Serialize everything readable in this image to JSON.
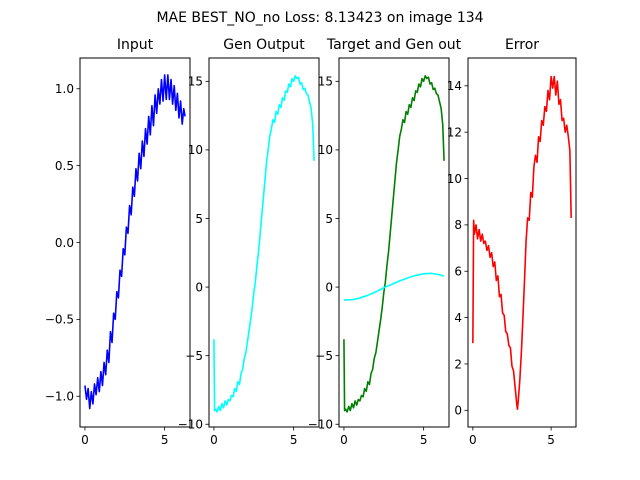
{
  "figure": {
    "suptitle": "MAE BEST_NO_no Loss: 8.13423 on image 134"
  },
  "chart_data": [
    {
      "type": "line",
      "title": "Input",
      "xlim": [
        -0.31,
        6.59
      ],
      "ylim": [
        -1.2,
        1.2
      ],
      "xticks": [
        0,
        5
      ],
      "yticks": [
        -1.0,
        -0.5,
        0.0,
        0.5,
        1.0
      ],
      "xtick_labels": [
        "0",
        "5"
      ],
      "ytick_labels": [
        "−1.0",
        "−0.5",
        "0.0",
        "0.5",
        "1.0"
      ],
      "series": [
        {
          "color": "#0000ff",
          "x": [
            0,
            0.1,
            0.2,
            0.3,
            0.4,
            0.5,
            0.6,
            0.7,
            0.8,
            0.9,
            1.0,
            1.1,
            1.2,
            1.3,
            1.4,
            1.5,
            1.6,
            1.7,
            1.8,
            1.9,
            2.0,
            2.1,
            2.2,
            2.3,
            2.4,
            2.5,
            2.6,
            2.7,
            2.8,
            2.9,
            3.0,
            3.1,
            3.2,
            3.3,
            3.4,
            3.5,
            3.6,
            3.7,
            3.8,
            3.9,
            4.0,
            4.1,
            4.2,
            4.3,
            4.4,
            4.5,
            4.6,
            4.7,
            4.8,
            4.9,
            5.0,
            5.1,
            5.2,
            5.3,
            5.4,
            5.5,
            5.6,
            5.7,
            5.8,
            5.9,
            6.0,
            6.1,
            6.2,
            6.28
          ],
          "values": [
            -0.93,
            -1.02,
            -0.95,
            -1.08,
            -0.97,
            -1.05,
            -0.92,
            -0.99,
            -0.88,
            -0.97,
            -0.84,
            -0.93,
            -0.78,
            -0.86,
            -0.7,
            -0.78,
            -0.58,
            -0.65,
            -0.46,
            -0.5,
            -0.32,
            -0.36,
            -0.18,
            -0.22,
            -0.04,
            -0.08,
            0.1,
            0.06,
            0.24,
            0.18,
            0.36,
            0.3,
            0.48,
            0.4,
            0.58,
            0.48,
            0.66,
            0.56,
            0.74,
            0.64,
            0.82,
            0.7,
            0.89,
            0.76,
            0.96,
            0.84,
            1.0,
            0.9,
            1.06,
            0.92,
            1.09,
            0.93,
            1.09,
            0.93,
            1.06,
            0.9,
            1.02,
            0.86,
            0.97,
            0.81,
            0.92,
            0.77,
            0.87,
            0.82
          ]
        }
      ]
    },
    {
      "type": "line",
      "title": "Gen Output",
      "xlim": [
        -0.31,
        6.59
      ],
      "ylim": [
        -10.2,
        16.7
      ],
      "xticks": [
        0,
        5
      ],
      "yticks": [
        -10,
        -5,
        0,
        5,
        10,
        15
      ],
      "xtick_labels": [
        "0",
        "5"
      ],
      "ytick_labels": [
        "−10",
        "−5",
        "0",
        "5",
        "10",
        "15"
      ],
      "series": [
        {
          "color": "#00ffff",
          "x": [
            0,
            0.04,
            0.1,
            0.2,
            0.3,
            0.4,
            0.5,
            0.6,
            0.7,
            0.8,
            0.9,
            1.0,
            1.1,
            1.2,
            1.3,
            1.4,
            1.5,
            1.6,
            1.7,
            1.8,
            1.9,
            2.0,
            2.1,
            2.2,
            2.3,
            2.4,
            2.5,
            2.6,
            2.7,
            2.8,
            2.9,
            3.0,
            3.1,
            3.2,
            3.3,
            3.4,
            3.5,
            3.6,
            3.7,
            3.8,
            3.9,
            4.0,
            4.1,
            4.2,
            4.3,
            4.4,
            4.5,
            4.6,
            4.7,
            4.8,
            4.9,
            5.0,
            5.1,
            5.2,
            5.3,
            5.4,
            5.5,
            5.6,
            5.7,
            5.8,
            5.9,
            6.0,
            6.1,
            6.2,
            6.28
          ],
          "values": [
            -3.8,
            -9.0,
            -8.9,
            -9.1,
            -8.7,
            -9.0,
            -8.5,
            -8.8,
            -8.3,
            -8.6,
            -8.2,
            -8.3,
            -7.9,
            -8.0,
            -7.4,
            -7.6,
            -6.9,
            -7.1,
            -6.3,
            -6.0,
            -5.2,
            -4.8,
            -4.0,
            -3.2,
            -2.4,
            -1.5,
            -0.4,
            0.4,
            1.6,
            2.6,
            3.9,
            5.2,
            6.5,
            7.8,
            9.1,
            10.0,
            11.0,
            11.5,
            12.2,
            12.0,
            12.8,
            12.6,
            13.3,
            13.1,
            13.8,
            13.6,
            14.3,
            14.2,
            14.8,
            14.6,
            15.2,
            15.0,
            15.4,
            15.2,
            15.3,
            14.8,
            14.9,
            14.4,
            14.5,
            14.1,
            14.0,
            13.5,
            13.0,
            11.8,
            9.2
          ]
        }
      ]
    },
    {
      "type": "line",
      "title": "Target and Gen out",
      "xlim": [
        -0.31,
        6.59
      ],
      "ylim": [
        -10.2,
        16.7
      ],
      "xticks": [
        0,
        5
      ],
      "yticks": [
        -10,
        -5,
        0,
        5,
        10,
        15
      ],
      "xtick_labels": [
        "0",
        "5"
      ],
      "ytick_labels": [
        "−10",
        "−5",
        "0",
        "5",
        "10",
        "15"
      ],
      "series": [
        {
          "color": "#008000",
          "x": [
            0,
            0.04,
            0.1,
            0.2,
            0.3,
            0.4,
            0.5,
            0.6,
            0.7,
            0.8,
            0.9,
            1.0,
            1.1,
            1.2,
            1.3,
            1.4,
            1.5,
            1.6,
            1.7,
            1.8,
            1.9,
            2.0,
            2.1,
            2.2,
            2.3,
            2.4,
            2.5,
            2.6,
            2.7,
            2.8,
            2.9,
            3.0,
            3.1,
            3.2,
            3.3,
            3.4,
            3.5,
            3.6,
            3.7,
            3.8,
            3.9,
            4.0,
            4.1,
            4.2,
            4.3,
            4.4,
            4.5,
            4.6,
            4.7,
            4.8,
            4.9,
            5.0,
            5.1,
            5.2,
            5.3,
            5.4,
            5.5,
            5.6,
            5.7,
            5.8,
            5.9,
            6.0,
            6.1,
            6.2,
            6.28
          ],
          "values": [
            -3.8,
            -9.0,
            -8.9,
            -9.1,
            -8.7,
            -9.0,
            -8.5,
            -8.8,
            -8.3,
            -8.6,
            -8.2,
            -8.3,
            -7.9,
            -8.0,
            -7.4,
            -7.6,
            -6.9,
            -7.1,
            -6.3,
            -6.0,
            -5.2,
            -4.8,
            -4.0,
            -3.2,
            -2.4,
            -1.5,
            -0.4,
            0.4,
            1.6,
            2.6,
            3.9,
            5.2,
            6.5,
            7.8,
            9.1,
            10.0,
            11.0,
            11.5,
            12.2,
            12.0,
            12.8,
            12.6,
            13.3,
            13.1,
            13.8,
            13.6,
            14.3,
            14.2,
            14.8,
            14.6,
            15.2,
            15.0,
            15.4,
            15.2,
            15.3,
            14.8,
            14.9,
            14.4,
            14.5,
            14.1,
            14.0,
            13.5,
            13.0,
            11.8,
            9.2
          ]
        },
        {
          "color": "#00ffff",
          "x": [
            0,
            0.5,
            1.0,
            1.5,
            2.0,
            2.5,
            3.0,
            3.5,
            4.0,
            4.5,
            5.0,
            5.5,
            6.0,
            6.28
          ],
          "values": [
            -0.95,
            -0.92,
            -0.8,
            -0.6,
            -0.35,
            -0.05,
            0.2,
            0.45,
            0.67,
            0.85,
            0.97,
            1.0,
            0.9,
            0.8
          ]
        }
      ]
    },
    {
      "type": "line",
      "title": "Error",
      "xlim": [
        -0.31,
        6.59
      ],
      "ylim": [
        -0.72,
        15.2
      ],
      "xticks": [
        0,
        5
      ],
      "yticks": [
        0,
        2,
        4,
        6,
        8,
        10,
        12,
        14
      ],
      "xtick_labels": [
        "0",
        "5"
      ],
      "ytick_labels": [
        "0",
        "2",
        "4",
        "6",
        "8",
        "10",
        "12",
        "14"
      ],
      "series": [
        {
          "color": "#ff0000",
          "x": [
            0,
            0.05,
            0.1,
            0.2,
            0.3,
            0.4,
            0.5,
            0.6,
            0.7,
            0.8,
            0.9,
            1.0,
            1.1,
            1.2,
            1.3,
            1.4,
            1.5,
            1.6,
            1.7,
            1.8,
            1.9,
            2.0,
            2.1,
            2.2,
            2.3,
            2.4,
            2.5,
            2.6,
            2.7,
            2.8,
            2.85,
            2.9,
            3.0,
            3.1,
            3.2,
            3.3,
            3.4,
            3.5,
            3.6,
            3.7,
            3.8,
            3.9,
            4.0,
            4.1,
            4.2,
            4.3,
            4.4,
            4.5,
            4.6,
            4.7,
            4.8,
            4.9,
            5.0,
            5.1,
            5.2,
            5.3,
            5.4,
            5.5,
            5.6,
            5.7,
            5.8,
            5.9,
            6.0,
            6.1,
            6.2,
            6.28
          ],
          "values": [
            2.9,
            8.2,
            7.6,
            8.0,
            7.4,
            7.8,
            7.3,
            7.6,
            7.2,
            7.3,
            6.9,
            7.1,
            6.6,
            6.8,
            6.2,
            6.4,
            5.6,
            5.8,
            4.9,
            5.0,
            4.2,
            4.1,
            3.4,
            3.3,
            2.8,
            2.7,
            1.9,
            1.7,
            1.0,
            0.3,
            0.05,
            0.4,
            1.3,
            2.5,
            4.0,
            5.6,
            7.3,
            8.3,
            8.2,
            9.4,
            9.2,
            10.5,
            11.0,
            10.7,
            11.8,
            11.6,
            12.5,
            12.3,
            13.1,
            12.9,
            13.8,
            13.4,
            14.4,
            13.9,
            14.4,
            13.6,
            14.2,
            13.2,
            13.4,
            12.5,
            12.6,
            12.0,
            12.3,
            11.8,
            11.2,
            8.3
          ]
        }
      ]
    }
  ]
}
